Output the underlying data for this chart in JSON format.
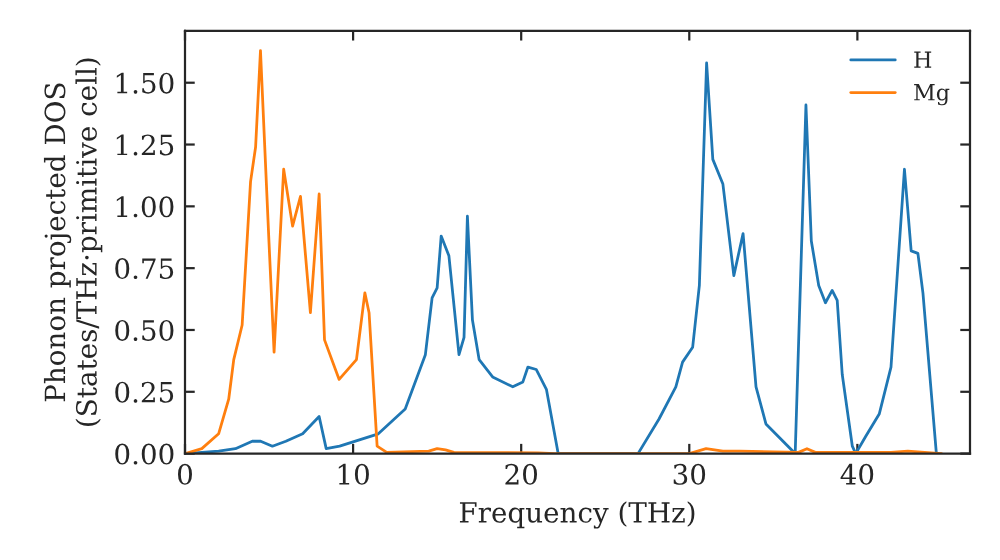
{
  "chart_data": {
    "type": "line",
    "xlabel": "Frequency (THz)",
    "ylabel": "Phonon projected DOS\n(States/THz·primitive cell)",
    "xlim": [
      0,
      46.7
    ],
    "ylim": [
      0,
      1.71
    ],
    "xticks": [
      0,
      10,
      20,
      30,
      40
    ],
    "yticks": [
      {
        "value": 0,
        "label": "0.00"
      },
      {
        "value": 0.25,
        "label": "0.25"
      },
      {
        "value": 0.5,
        "label": "0.50"
      },
      {
        "value": 0.75,
        "label": "0.75"
      },
      {
        "value": 1.0,
        "label": "1.00"
      },
      {
        "value": 1.25,
        "label": "1.25"
      },
      {
        "value": 1.5,
        "label": "1.50"
      }
    ],
    "legend": "top right",
    "grid": false,
    "series": [
      {
        "name": "H",
        "color": "#1f77b4",
        "x": [
          0,
          2,
          3,
          4.0,
          4.5,
          5.2,
          6.0,
          7.0,
          7.98,
          8.4,
          9.2,
          11.5,
          13.1,
          14.3,
          14.7,
          15.0,
          15.24,
          15.7,
          16.3,
          16.6,
          16.8,
          17.1,
          17.5,
          18.3,
          19.5,
          20.1,
          20.4,
          20.9,
          21.5,
          22.2,
          26.95,
          28.2,
          29.2,
          29.6,
          30.2,
          30.6,
          31.03,
          31.4,
          32.0,
          32.65,
          33.2,
          33.97,
          34.56,
          36.3,
          36.94,
          37.26,
          37.7,
          38.1,
          38.5,
          38.8,
          39.1,
          39.7,
          39.9,
          40.5,
          41.3,
          42.0,
          42.8,
          43.2,
          43.6,
          43.9,
          44.7
        ],
        "values": [
          0,
          0.01,
          0.02,
          0.05,
          0.05,
          0.03,
          0.05,
          0.08,
          0.15,
          0.02,
          0.03,
          0.08,
          0.18,
          0.4,
          0.63,
          0.67,
          0.88,
          0.8,
          0.4,
          0.47,
          0.96,
          0.54,
          0.38,
          0.31,
          0.27,
          0.29,
          0.35,
          0.34,
          0.26,
          0,
          0,
          0.14,
          0.27,
          0.37,
          0.43,
          0.68,
          1.58,
          1.19,
          1.09,
          0.72,
          0.89,
          0.27,
          0.12,
          0,
          1.41,
          0.86,
          0.68,
          0.61,
          0.66,
          0.62,
          0.32,
          0.03,
          0,
          0.07,
          0.16,
          0.35,
          1.15,
          0.82,
          0.81,
          0.65,
          0
        ]
      },
      {
        "name": "Mg",
        "color": "#ff7f0e",
        "x": [
          0,
          1,
          2,
          2.6,
          2.9,
          3.4,
          3.9,
          4.2,
          4.49,
          5.0,
          5.3,
          5.87,
          6.4,
          6.87,
          7.46,
          7.98,
          8.3,
          9.17,
          10.2,
          10.7,
          10.95,
          11.43,
          12,
          14.5,
          15,
          15.5,
          16,
          21,
          22,
          30,
          31,
          32,
          33,
          36.5,
          37,
          37.5,
          42,
          43,
          44,
          45
        ],
        "values": [
          0,
          0.02,
          0.08,
          0.22,
          0.38,
          0.52,
          1.1,
          1.24,
          1.63,
          0.85,
          0.41,
          1.15,
          0.92,
          1.04,
          0.57,
          1.05,
          0.46,
          0.3,
          0.38,
          0.65,
          0.57,
          0.03,
          0.005,
          0.01,
          0.02,
          0.015,
          0.005,
          0.003,
          0,
          0,
          0.02,
          0.01,
          0.01,
          0.005,
          0.02,
          0.005,
          0.005,
          0.01,
          0.005,
          0
        ]
      }
    ]
  }
}
